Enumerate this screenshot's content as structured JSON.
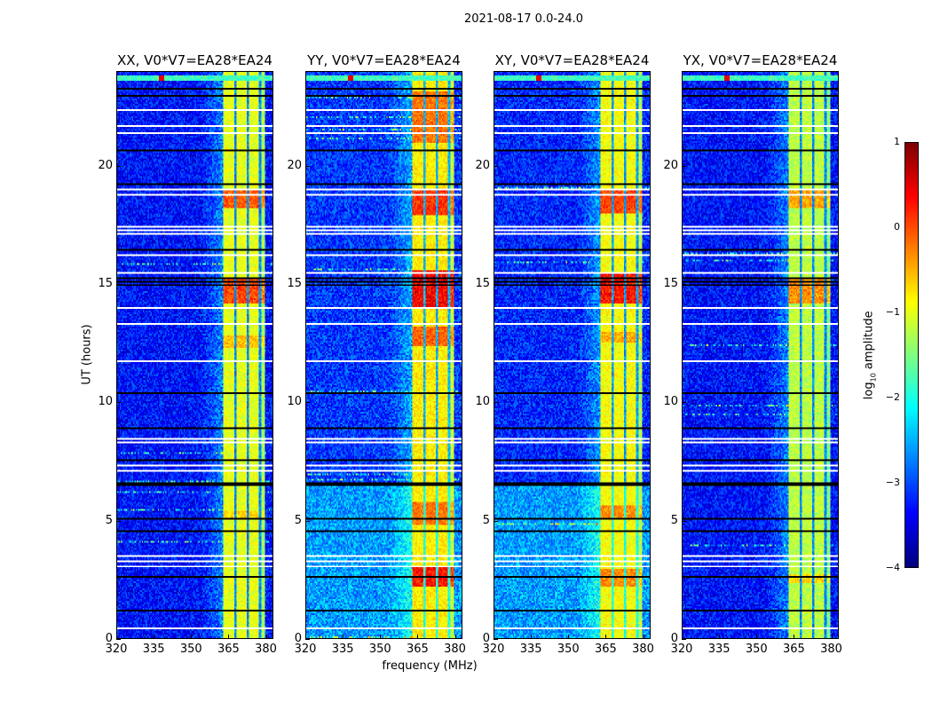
{
  "chart_data": {
    "type": "heatmap",
    "title": "2021-08-17 0.0-24.0",
    "xlabel": "frequency (MHz)",
    "ylabel": "UT (hours)",
    "xlim": [
      320,
      383
    ],
    "ylim": [
      0,
      24
    ],
    "xticks": [
      "320",
      "335",
      "350",
      "365",
      "380"
    ],
    "xtick_values": [
      320,
      335,
      350,
      365,
      380
    ],
    "yticks": [
      "0",
      "5",
      "10",
      "15",
      "20"
    ],
    "ytick_values": [
      0,
      5,
      10,
      15,
      20
    ],
    "colormap": "jet",
    "colorbar": {
      "label_main": "log",
      "label_sub": "10",
      "label_rest": " amplitude",
      "range": [
        -4,
        1
      ],
      "ticks": [
        "1",
        "0",
        "−1",
        "−2",
        "−3",
        "−4"
      ],
      "tick_values": [
        1,
        0,
        -1,
        -2,
        -3,
        -4
      ]
    },
    "band_mhz": [
      363,
      380
    ],
    "band_gaps_mhz": [
      368,
      373,
      378
    ],
    "flagged_rows_hours": [
      0.45,
      3.05,
      3.3,
      3.5,
      7.1,
      7.35,
      8.3,
      8.5,
      11.75,
      13.35,
      14.05,
      15.55,
      16.25,
      17.2,
      17.35,
      17.5,
      18.8,
      19.05,
      21.45,
      21.75,
      22.45
    ],
    "black_rows_hours": [
      1.2,
      2.6,
      4.6,
      5.1,
      6.5,
      6.6,
      7.6,
      8.9,
      10.45,
      15.0,
      15.15,
      15.3,
      16.5,
      19.3,
      20.7,
      23.0,
      23.35
    ],
    "panels": [
      {
        "title": "XX, V0*V7=EA28*EA24",
        "background_level": -3.3,
        "early_background_level": -3.3,
        "band_level": -1.0,
        "hot_intervals": [
          [
            14.2,
            15.2,
            1.2
          ],
          [
            18.2,
            19.0,
            1.1
          ],
          [
            12.3,
            12.8,
            0.5
          ],
          [
            5.0,
            5.4,
            0.4
          ]
        ]
      },
      {
        "title": "YY, V0*V7=EA28*EA24",
        "background_level": -3.1,
        "early_background_level": -2.6,
        "band_level": -0.8,
        "hot_intervals": [
          [
            2.2,
            3.0,
            1.3
          ],
          [
            14.0,
            15.6,
            1.4
          ],
          [
            17.9,
            19.0,
            1.1
          ],
          [
            21.0,
            23.2,
            0.7
          ],
          [
            12.4,
            13.2,
            0.8
          ],
          [
            4.8,
            5.8,
            0.7
          ]
        ]
      },
      {
        "title": "XY, V0*V7=EA28*EA24",
        "background_level": -3.2,
        "early_background_level": -2.6,
        "band_level": -0.9,
        "hot_intervals": [
          [
            14.2,
            15.5,
            1.4
          ],
          [
            18.0,
            19.0,
            1.1
          ],
          [
            5.0,
            5.6,
            0.7
          ],
          [
            2.2,
            2.9,
            0.7
          ],
          [
            12.5,
            13.0,
            0.5
          ]
        ]
      },
      {
        "title": "YX, V0*V7=EA28*EA24",
        "background_level": -3.3,
        "early_background_level": -3.3,
        "band_level": -1.2,
        "hot_intervals": [
          [
            14.2,
            15.2,
            1.0
          ],
          [
            18.2,
            19.0,
            0.9
          ],
          [
            2.3,
            2.7,
            0.6
          ]
        ]
      }
    ]
  }
}
